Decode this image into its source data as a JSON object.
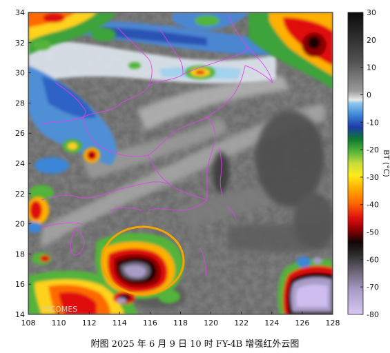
{
  "map": {
    "x_ticks": [
      "108",
      "110",
      "112",
      "114",
      "116",
      "118",
      "120",
      "122",
      "124",
      "126",
      "128"
    ],
    "y_ticks": [
      "14",
      "16",
      "18",
      "20",
      "22",
      "24",
      "26",
      "28",
      "30",
      "32",
      "34"
    ],
    "watermark": "FYCOMES",
    "colorbar": {
      "ticks": [
        "30",
        "20",
        "10",
        "0",
        "-10",
        "-20",
        "-30",
        "-40",
        "-50",
        "-60",
        "-70",
        "-80"
      ],
      "label": "BT (°C)"
    },
    "highlight": "typhoon-circle",
    "caption": "附图 2025 年 6 月 9 日 10 时 FY-4B 增强红外云图"
  }
}
